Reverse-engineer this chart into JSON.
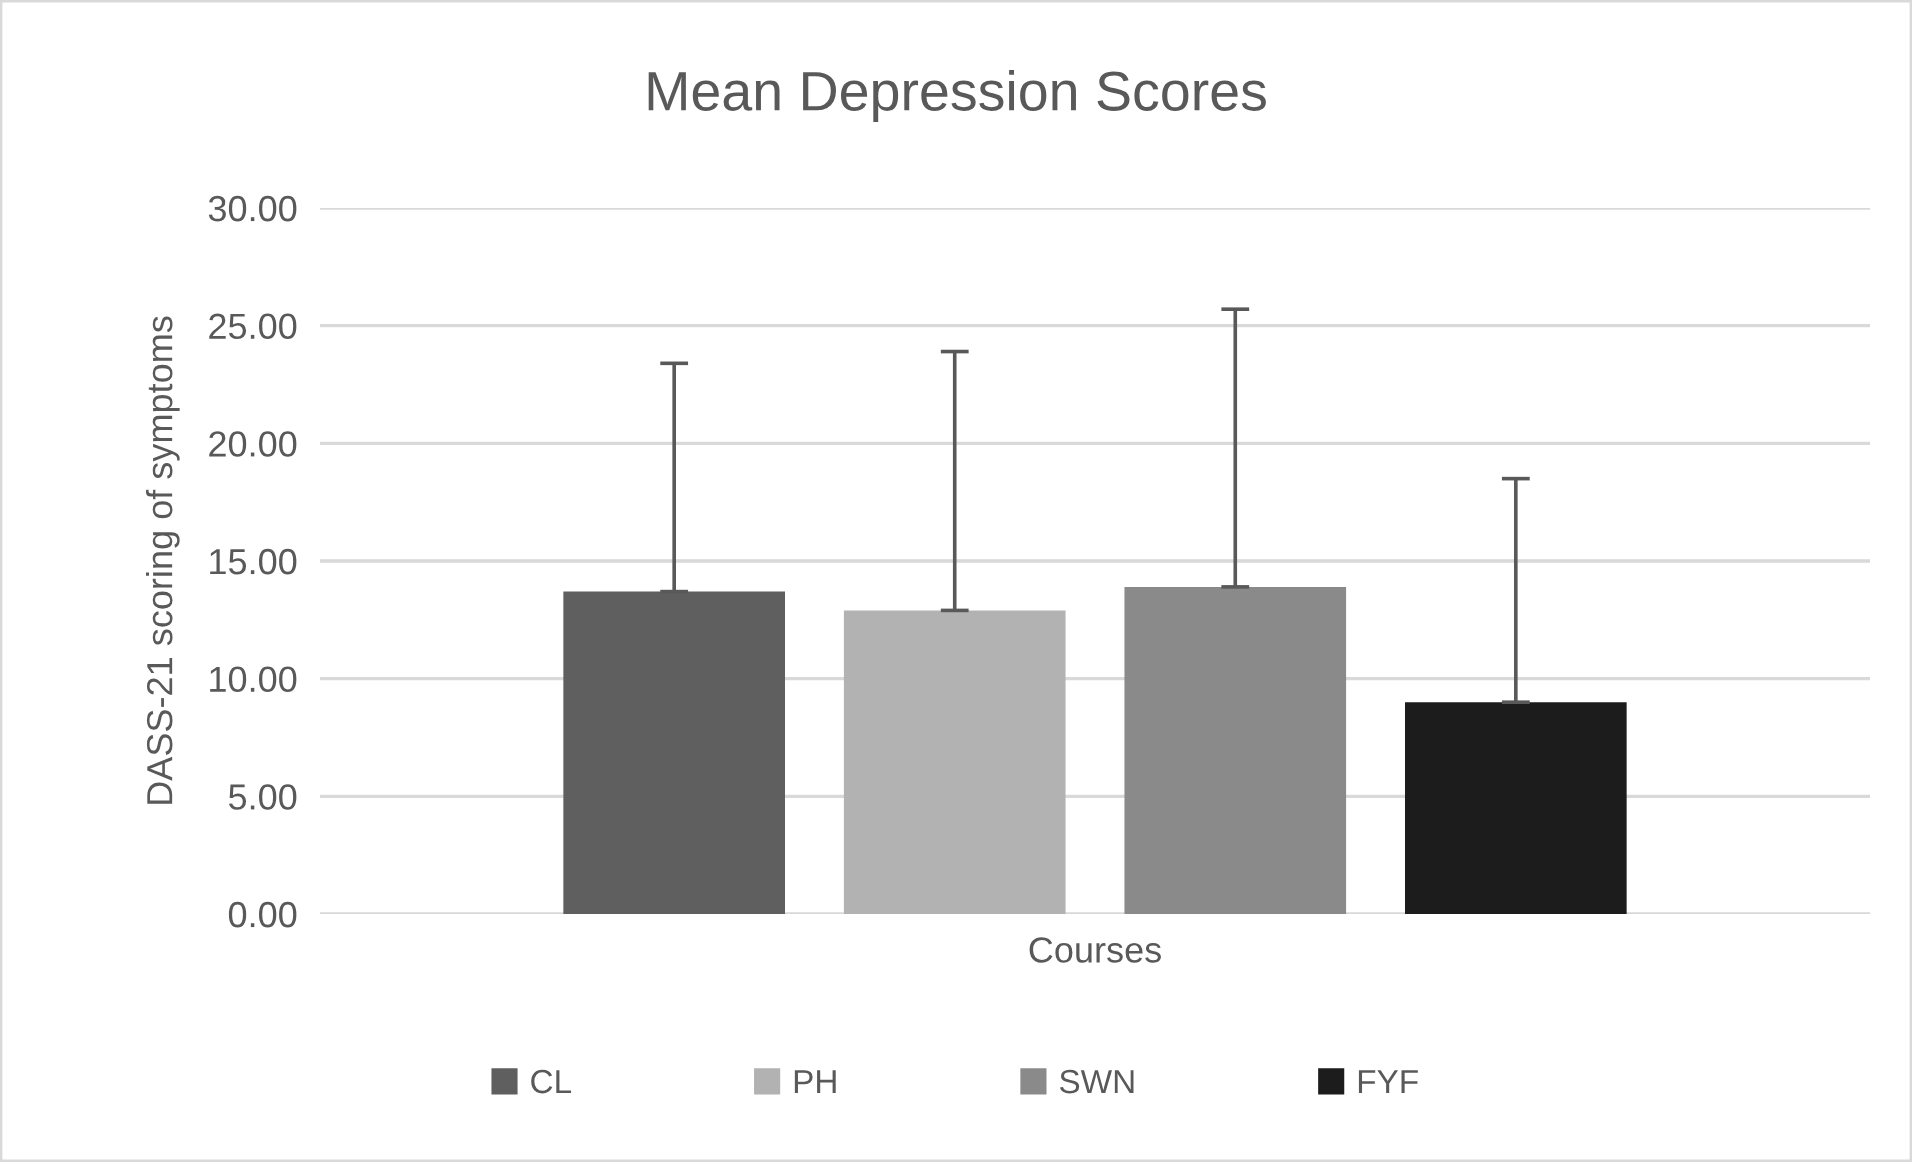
{
  "chart_data": {
    "type": "bar",
    "title": "Mean Depression Scores",
    "ylabel": "DASS-21 scoring of symptoms",
    "categories": [
      "Courses"
    ],
    "series": [
      {
        "name": "CL",
        "color": "#5f5f5f",
        "values": [
          13.7
        ],
        "errors": [
          [
            13.7,
            23.4
          ]
        ]
      },
      {
        "name": "PH",
        "color": "#b2b2b2",
        "values": [
          12.9
        ],
        "errors": [
          [
            12.9,
            23.9
          ]
        ]
      },
      {
        "name": "SWN",
        "color": "#8a8a8a",
        "values": [
          13.9
        ],
        "errors": [
          [
            13.9,
            25.7
          ]
        ]
      },
      {
        "name": "FYF",
        "color": "#1c1c1c",
        "values": [
          9.0
        ],
        "errors": [
          [
            9.0,
            18.5
          ]
        ]
      }
    ],
    "ylim": [
      0,
      30
    ],
    "yticks": [
      {
        "value": 0,
        "label": "0.00"
      },
      {
        "value": 5,
        "label": "5.00"
      },
      {
        "value": 10,
        "label": "10.00"
      },
      {
        "value": 15,
        "label": "15.00"
      },
      {
        "value": 20,
        "label": "20.00"
      },
      {
        "value": 25,
        "label": "25.00"
      },
      {
        "value": 30,
        "label": "30.00"
      }
    ],
    "grid": "y",
    "legend": "bottom"
  }
}
